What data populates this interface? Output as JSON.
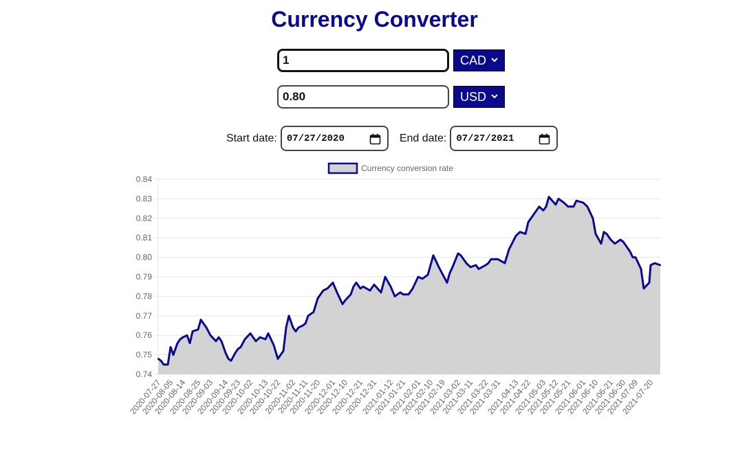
{
  "page": {
    "title": "Currency Converter"
  },
  "converter": {
    "from": {
      "amount": "1",
      "currency": "CAD",
      "options": [
        "CAD"
      ]
    },
    "to": {
      "amount": "0.80",
      "currency": "USD",
      "options": [
        "USD"
      ]
    },
    "start_date": {
      "label": "Start date:",
      "value": "07/27/2020"
    },
    "end_date": {
      "label": "End date:",
      "value": "07/27/2021"
    }
  },
  "icons": {
    "select_arrow": "chevron-down-icon",
    "date_picker": "calendar-icon"
  },
  "colors": {
    "accent": "#0a0a8c",
    "line": "#0a0a8c",
    "fill": "#d3d3d3"
  },
  "chart_data": {
    "type": "area",
    "legend": {
      "position": "top",
      "entries": [
        "Currency conversion rate"
      ]
    },
    "ylim": [
      0.74,
      0.84
    ],
    "yticks": [
      "0.84",
      "0.83",
      "0.82",
      "0.81",
      "0.80",
      "0.79",
      "0.78",
      "0.77",
      "0.76",
      "0.75",
      "0.74"
    ],
    "grid": true,
    "xticks": [
      "2020-07-27",
      "2020-08-05",
      "2020-08-14",
      "2020-08-25",
      "2020-09-03",
      "2020-09-14",
      "2020-09-23",
      "2020-10-02",
      "2020-10-13",
      "2020-10-22",
      "2020-11-02",
      "2020-11-11",
      "2020-11-20",
      "2020-12-01",
      "2020-12-10",
      "2020-12-21",
      "2020-12-31",
      "2021-01-12",
      "2021-01-21",
      "2021-02-01",
      "2021-02-10",
      "2021-02-19",
      "2021-03-02",
      "2021-03-11",
      "2021-03-22",
      "2021-03-31",
      "2021-04-13",
      "2021-04-22",
      "2021-05-03",
      "2021-05-12",
      "2021-05-21",
      "2021-06-01",
      "2021-06-10",
      "2021-06-21",
      "2021-06-30",
      "2021-07-09",
      "2021-07-20"
    ],
    "series": [
      {
        "name": "Currency conversion rate",
        "x": [
          "2020-07-27",
          "2020-07-29",
          "2020-07-31",
          "2020-08-03",
          "2020-08-05",
          "2020-08-07",
          "2020-08-10",
          "2020-08-12",
          "2020-08-14",
          "2020-08-17",
          "2020-08-19",
          "2020-08-21",
          "2020-08-25",
          "2020-08-27",
          "2020-08-31",
          "2020-09-03",
          "2020-09-07",
          "2020-09-09",
          "2020-09-11",
          "2020-09-14",
          "2020-09-16",
          "2020-09-18",
          "2020-09-21",
          "2020-09-23",
          "2020-09-25",
          "2020-09-28",
          "2020-10-02",
          "2020-10-06",
          "2020-10-09",
          "2020-10-13",
          "2020-10-15",
          "2020-10-19",
          "2020-10-22",
          "2020-10-26",
          "2020-10-28",
          "2020-10-30",
          "2020-11-02",
          "2020-11-04",
          "2020-11-06",
          "2020-11-09",
          "2020-11-11",
          "2020-11-13",
          "2020-11-17",
          "2020-11-20",
          "2020-11-24",
          "2020-11-27",
          "2020-12-01",
          "2020-12-04",
          "2020-12-08",
          "2020-12-10",
          "2020-12-14",
          "2020-12-16",
          "2020-12-18",
          "2020-12-21",
          "2020-12-23",
          "2020-12-28",
          "2020-12-31",
          "2021-01-05",
          "2021-01-08",
          "2021-01-12",
          "2021-01-15",
          "2021-01-19",
          "2021-01-21",
          "2021-01-25",
          "2021-01-28",
          "2021-02-01",
          "2021-02-04",
          "2021-02-08",
          "2021-02-10",
          "2021-02-12",
          "2021-02-16",
          "2021-02-19",
          "2021-02-22",
          "2021-02-24",
          "2021-02-26",
          "2021-03-02",
          "2021-03-04",
          "2021-03-08",
          "2021-03-11",
          "2021-03-15",
          "2021-03-17",
          "2021-03-22",
          "2021-03-24",
          "2021-03-26",
          "2021-03-31",
          "2021-04-05",
          "2021-04-08",
          "2021-04-13",
          "2021-04-16",
          "2021-04-20",
          "2021-04-22",
          "2021-04-27",
          "2021-04-30",
          "2021-05-03",
          "2021-05-05",
          "2021-05-07",
          "2021-05-12",
          "2021-05-14",
          "2021-05-18",
          "2021-05-21",
          "2021-05-25",
          "2021-05-27",
          "2021-06-01",
          "2021-06-04",
          "2021-06-08",
          "2021-06-10",
          "2021-06-14",
          "2021-06-16",
          "2021-06-18",
          "2021-06-21",
          "2021-06-24",
          "2021-06-28",
          "2021-06-30",
          "2021-07-05",
          "2021-07-07",
          "2021-07-09",
          "2021-07-13",
          "2021-07-15",
          "2021-07-19",
          "2021-07-20",
          "2021-07-23",
          "2021-07-27"
        ],
        "values": [
          0.748,
          0.747,
          0.745,
          0.745,
          0.754,
          0.75,
          0.756,
          0.758,
          0.759,
          0.76,
          0.756,
          0.762,
          0.763,
          0.768,
          0.764,
          0.76,
          0.757,
          0.759,
          0.757,
          0.751,
          0.748,
          0.747,
          0.751,
          0.753,
          0.754,
          0.758,
          0.761,
          0.757,
          0.759,
          0.758,
          0.761,
          0.755,
          0.748,
          0.752,
          0.764,
          0.77,
          0.764,
          0.762,
          0.764,
          0.765,
          0.766,
          0.77,
          0.772,
          0.779,
          0.783,
          0.784,
          0.787,
          0.782,
          0.776,
          0.778,
          0.781,
          0.785,
          0.787,
          0.784,
          0.785,
          0.783,
          0.786,
          0.782,
          0.79,
          0.785,
          0.78,
          0.782,
          0.781,
          0.781,
          0.784,
          0.79,
          0.789,
          0.791,
          0.796,
          0.801,
          0.795,
          0.791,
          0.787,
          0.792,
          0.795,
          0.802,
          0.801,
          0.797,
          0.795,
          0.796,
          0.794,
          0.796,
          0.797,
          0.799,
          0.799,
          0.797,
          0.804,
          0.811,
          0.813,
          0.812,
          0.818,
          0.823,
          0.826,
          0.824,
          0.826,
          0.831,
          0.827,
          0.83,
          0.828,
          0.826,
          0.826,
          0.829,
          0.828,
          0.826,
          0.82,
          0.812,
          0.807,
          0.813,
          0.812,
          0.809,
          0.807,
          0.809,
          0.808,
          0.803,
          0.8,
          0.8,
          0.794,
          0.784,
          0.787,
          0.796,
          0.797,
          0.796
        ]
      }
    ]
  }
}
